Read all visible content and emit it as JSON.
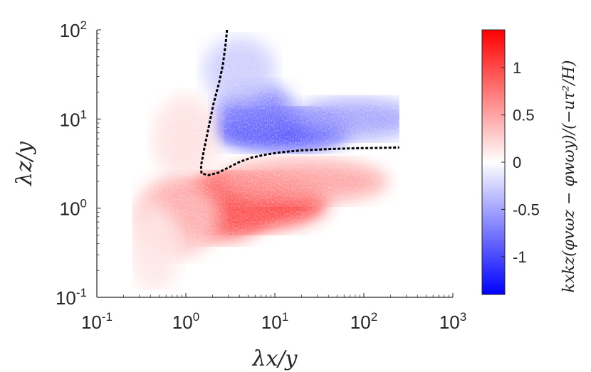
{
  "chart_data": {
    "type": "heatmap",
    "title": "",
    "xlabel": "λx/y",
    "ylabel": "λz/y",
    "x_scale": "log",
    "y_scale": "log",
    "xlim": [
      0.1,
      1000
    ],
    "ylim": [
      0.1,
      100
    ],
    "x_ticks": [
      {
        "value": 0.1,
        "base": "10",
        "exp": "-1"
      },
      {
        "value": 1,
        "base": "10",
        "exp": "0"
      },
      {
        "value": 10,
        "base": "10",
        "exp": "1"
      },
      {
        "value": 100,
        "base": "10",
        "exp": "2"
      },
      {
        "value": 1000,
        "base": "10",
        "exp": "3"
      }
    ],
    "y_ticks": [
      {
        "value": 0.1,
        "base": "10",
        "exp": "-1"
      },
      {
        "value": 1,
        "base": "10",
        "exp": "0"
      },
      {
        "value": 10,
        "base": "10",
        "exp": "1"
      },
      {
        "value": 100,
        "base": "10",
        "exp": "2"
      }
    ],
    "grid": false,
    "colormap": {
      "min_color": "#0000ff",
      "mid_color": "#ffffff",
      "max_color": "#ff0000",
      "clim": [
        -1.4,
        1.4
      ],
      "ticks": [
        "1",
        "0.5",
        "0",
        "-0.5",
        "-1"
      ],
      "tick_values": [
        1,
        0.5,
        0,
        -0.5,
        -1
      ],
      "label": "kxkz(φvωz − φwωy)/(−uτ²/H)"
    },
    "data_extent": {
      "x": [
        0.25,
        250
      ],
      "y": [
        0.12,
        100
      ]
    },
    "regions": [
      {
        "name": "positive",
        "peak": 1.2,
        "center": {
          "x": 4,
          "y": 1.2
        }
      },
      {
        "name": "negative",
        "peak": -1.2,
        "center": {
          "x": 15,
          "y": 8
        }
      }
    ],
    "zero_contour": {
      "style": "black dashed",
      "points": [
        [
          2.9,
          100
        ],
        [
          2.8,
          70
        ],
        [
          2.6,
          40
        ],
        [
          2.35,
          25
        ],
        [
          2.05,
          15
        ],
        [
          1.8,
          8
        ],
        [
          1.6,
          4.5
        ],
        [
          1.48,
          3
        ],
        [
          1.5,
          2.45
        ],
        [
          1.8,
          2.35
        ],
        [
          2.3,
          2.5
        ],
        [
          3,
          2.85
        ],
        [
          4,
          3.3
        ],
        [
          5.5,
          3.7
        ],
        [
          8,
          4.0
        ],
        [
          12,
          4.25
        ],
        [
          20,
          4.45
        ],
        [
          40,
          4.6
        ],
        [
          80,
          4.7
        ],
        [
          150,
          4.75
        ],
        [
          250,
          4.8
        ]
      ]
    }
  }
}
